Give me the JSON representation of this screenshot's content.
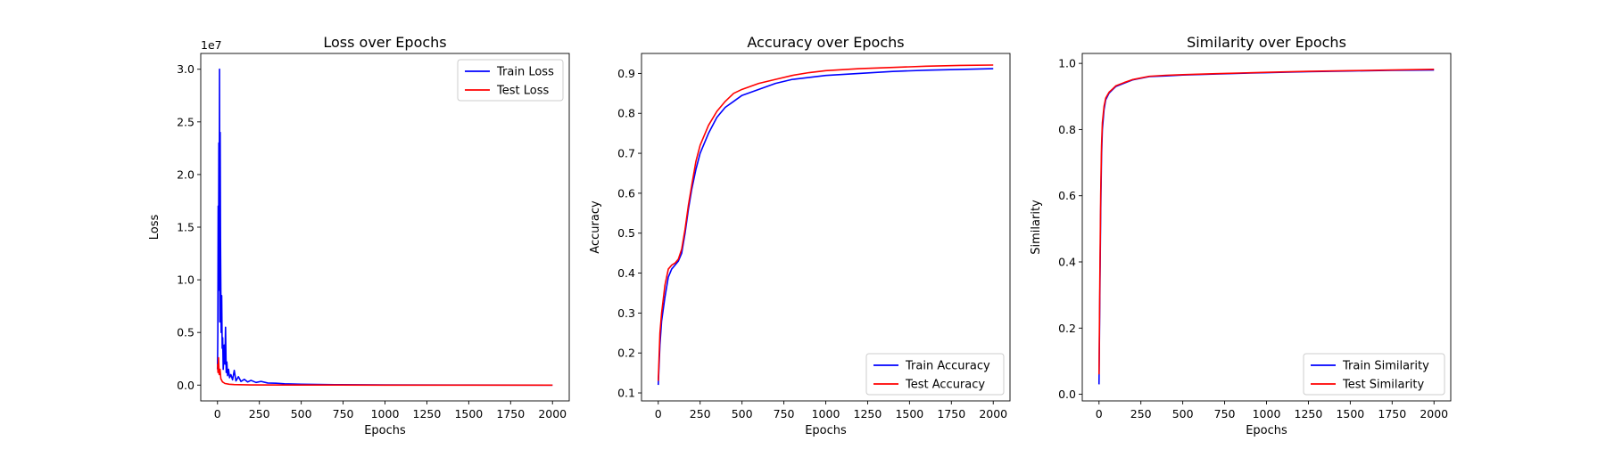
{
  "chart_data": [
    {
      "type": "line",
      "title": "Loss over Epochs",
      "xlabel": "Epochs",
      "ylabel": "Loss",
      "offset_text": "1e7",
      "xlim": [
        -100,
        2100
      ],
      "ylim": [
        -1.5,
        31.5
      ],
      "xticks": [
        0,
        250,
        500,
        750,
        1000,
        1250,
        1500,
        1750,
        2000
      ],
      "xtick_labels": [
        "0",
        "250",
        "500",
        "750",
        "1000",
        "1250",
        "1500",
        "1750",
        "2000"
      ],
      "yticks": [
        0,
        5,
        10,
        15,
        20,
        25,
        30
      ],
      "ytick_labels": [
        "0.0",
        "0.5",
        "1.0",
        "1.5",
        "2.0",
        "2.5",
        "3.0"
      ],
      "legend_position": "upper right",
      "grid": false,
      "series": [
        {
          "name": "Train Loss",
          "color": "#0000ff",
          "points": [
            [
              0,
              1.5
            ],
            [
              2,
              5.0
            ],
            [
              4,
              17.0
            ],
            [
              6,
              9.0
            ],
            [
              8,
              23.0
            ],
            [
              10,
              13.0
            ],
            [
              12,
              30.0
            ],
            [
              14,
              6.0
            ],
            [
              16,
              24.0
            ],
            [
              18,
              14.0
            ],
            [
              20,
              9.0
            ],
            [
              22,
              5.0
            ],
            [
              25,
              8.5
            ],
            [
              28,
              3.5
            ],
            [
              31,
              4.5
            ],
            [
              34,
              1.5
            ],
            [
              37,
              2.5
            ],
            [
              40,
              3.8
            ],
            [
              44,
              2.0
            ],
            [
              48,
              5.5
            ],
            [
              52,
              1.2
            ],
            [
              56,
              2.2
            ],
            [
              60,
              0.9
            ],
            [
              66,
              1.5
            ],
            [
              72,
              0.7
            ],
            [
              80,
              1.0
            ],
            [
              90,
              0.5
            ],
            [
              100,
              1.4
            ],
            [
              110,
              0.4
            ],
            [
              125,
              0.8
            ],
            [
              140,
              0.35
            ],
            [
              160,
              0.55
            ],
            [
              180,
              0.3
            ],
            [
              200,
              0.45
            ],
            [
              230,
              0.25
            ],
            [
              260,
              0.35
            ],
            [
              300,
              0.2
            ],
            [
              350,
              0.18
            ],
            [
              400,
              0.12
            ],
            [
              500,
              0.08
            ],
            [
              700,
              0.04
            ],
            [
              1000,
              0.02
            ],
            [
              1500,
              0.01
            ],
            [
              2000,
              0.0
            ]
          ]
        },
        {
          "name": "Test Loss",
          "color": "#ff0000",
          "points": [
            [
              0,
              2.0
            ],
            [
              3,
              1.2
            ],
            [
              6,
              2.6
            ],
            [
              10,
              1.0
            ],
            [
              15,
              1.5
            ],
            [
              20,
              0.6
            ],
            [
              30,
              0.3
            ],
            [
              45,
              0.15
            ],
            [
              70,
              0.08
            ],
            [
              100,
              0.05
            ],
            [
              200,
              0.02
            ],
            [
              500,
              0.01
            ],
            [
              1000,
              0.0
            ],
            [
              2000,
              0.0
            ]
          ]
        }
      ]
    },
    {
      "type": "line",
      "title": "Accuracy over Epochs",
      "xlabel": "Epochs",
      "ylabel": "Accuracy",
      "xlim": [
        -100,
        2100
      ],
      "ylim": [
        0.08,
        0.95
      ],
      "xticks": [
        0,
        250,
        500,
        750,
        1000,
        1250,
        1500,
        1750,
        2000
      ],
      "xtick_labels": [
        "0",
        "250",
        "500",
        "750",
        "1000",
        "1250",
        "1500",
        "1750",
        "2000"
      ],
      "yticks": [
        0.1,
        0.2,
        0.3,
        0.4,
        0.5,
        0.6,
        0.7,
        0.8,
        0.9
      ],
      "ytick_labels": [
        "0.1",
        "0.2",
        "0.3",
        "0.4",
        "0.5",
        "0.6",
        "0.7",
        "0.8",
        "0.9"
      ],
      "legend_position": "lower right",
      "grid": false,
      "series": [
        {
          "name": "Train Accuracy",
          "color": "#0000ff",
          "points": [
            [
              0,
              0.12
            ],
            [
              10,
              0.22
            ],
            [
              20,
              0.28
            ],
            [
              40,
              0.34
            ],
            [
              60,
              0.39
            ],
            [
              80,
              0.41
            ],
            [
              100,
              0.42
            ],
            [
              120,
              0.43
            ],
            [
              140,
              0.45
            ],
            [
              160,
              0.5
            ],
            [
              180,
              0.56
            ],
            [
              200,
              0.61
            ],
            [
              225,
              0.66
            ],
            [
              250,
              0.7
            ],
            [
              300,
              0.75
            ],
            [
              350,
              0.79
            ],
            [
              400,
              0.815
            ],
            [
              450,
              0.83
            ],
            [
              500,
              0.845
            ],
            [
              600,
              0.86
            ],
            [
              700,
              0.875
            ],
            [
              800,
              0.885
            ],
            [
              900,
              0.89
            ],
            [
              1000,
              0.895
            ],
            [
              1200,
              0.9
            ],
            [
              1400,
              0.905
            ],
            [
              1600,
              0.908
            ],
            [
              1800,
              0.91
            ],
            [
              2000,
              0.912
            ]
          ]
        },
        {
          "name": "Test Accuracy",
          "color": "#ff0000",
          "points": [
            [
              0,
              0.13
            ],
            [
              10,
              0.25
            ],
            [
              20,
              0.3
            ],
            [
              40,
              0.37
            ],
            [
              60,
              0.41
            ],
            [
              80,
              0.42
            ],
            [
              100,
              0.425
            ],
            [
              120,
              0.435
            ],
            [
              140,
              0.46
            ],
            [
              160,
              0.51
            ],
            [
              180,
              0.57
            ],
            [
              200,
              0.62
            ],
            [
              225,
              0.68
            ],
            [
              250,
              0.72
            ],
            [
              300,
              0.77
            ],
            [
              350,
              0.805
            ],
            [
              400,
              0.83
            ],
            [
              450,
              0.85
            ],
            [
              500,
              0.86
            ],
            [
              600,
              0.875
            ],
            [
              700,
              0.885
            ],
            [
              800,
              0.895
            ],
            [
              900,
              0.902
            ],
            [
              1000,
              0.907
            ],
            [
              1200,
              0.912
            ],
            [
              1400,
              0.915
            ],
            [
              1600,
              0.918
            ],
            [
              1800,
              0.92
            ],
            [
              2000,
              0.921
            ]
          ]
        }
      ]
    },
    {
      "type": "line",
      "title": "Similarity over Epochs",
      "xlabel": "Epochs",
      "ylabel": "Similarity",
      "xlim": [
        -100,
        2100
      ],
      "ylim": [
        -0.02,
        1.03
      ],
      "xticks": [
        0,
        250,
        500,
        750,
        1000,
        1250,
        1500,
        1750,
        2000
      ],
      "xtick_labels": [
        "0",
        "250",
        "500",
        "750",
        "1000",
        "1250",
        "1500",
        "1750",
        "2000"
      ],
      "yticks": [
        0.0,
        0.2,
        0.4,
        0.6,
        0.8,
        1.0
      ],
      "ytick_labels": [
        "0.0",
        "0.2",
        "0.4",
        "0.6",
        "0.8",
        "1.0"
      ],
      "legend_position": "lower right",
      "grid": false,
      "series": [
        {
          "name": "Train Similarity",
          "color": "#0000ff",
          "points": [
            [
              0,
              0.03
            ],
            [
              5,
              0.3
            ],
            [
              10,
              0.55
            ],
            [
              15,
              0.72
            ],
            [
              20,
              0.8
            ],
            [
              30,
              0.86
            ],
            [
              40,
              0.89
            ],
            [
              60,
              0.91
            ],
            [
              80,
              0.92
            ],
            [
              100,
              0.93
            ],
            [
              150,
              0.94
            ],
            [
              200,
              0.95
            ],
            [
              300,
              0.96
            ],
            [
              400,
              0.962
            ],
            [
              500,
              0.965
            ],
            [
              700,
              0.968
            ],
            [
              1000,
              0.972
            ],
            [
              1250,
              0.975
            ],
            [
              1500,
              0.977
            ],
            [
              1750,
              0.979
            ],
            [
              2000,
              0.98
            ]
          ]
        },
        {
          "name": "Test Similarity",
          "color": "#ff0000",
          "points": [
            [
              0,
              0.06
            ],
            [
              5,
              0.35
            ],
            [
              10,
              0.6
            ],
            [
              15,
              0.75
            ],
            [
              20,
              0.82
            ],
            [
              30,
              0.87
            ],
            [
              40,
              0.895
            ],
            [
              60,
              0.913
            ],
            [
              80,
              0.922
            ],
            [
              100,
              0.932
            ],
            [
              150,
              0.942
            ],
            [
              200,
              0.951
            ],
            [
              300,
              0.961
            ],
            [
              400,
              0.964
            ],
            [
              500,
              0.966
            ],
            [
              700,
              0.969
            ],
            [
              1000,
              0.973
            ],
            [
              1250,
              0.976
            ],
            [
              1500,
              0.978
            ],
            [
              1750,
              0.98
            ],
            [
              2000,
              0.982
            ]
          ]
        }
      ]
    }
  ]
}
